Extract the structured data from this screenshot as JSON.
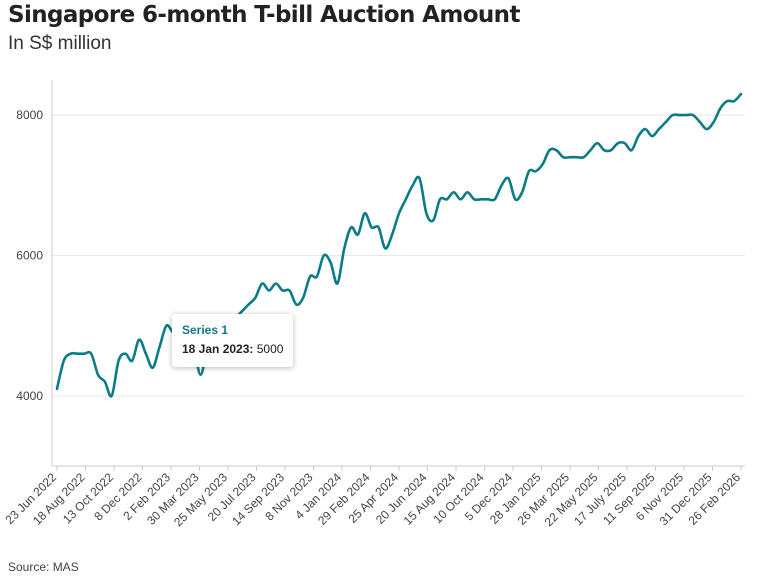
{
  "title": "Singapore 6-month T-bill Auction Amount",
  "subtitle": "In S$ million",
  "source": "Source: MAS",
  "tooltip": {
    "series": "Series 1",
    "date": "18 Jan 2023:",
    "value": "5000"
  },
  "colors": {
    "line": "#0b7c86",
    "grid": "#e8e8e8",
    "axis": "#cccccc"
  },
  "chart_data": {
    "type": "line",
    "title": "Singapore 6-month T-bill Auction Amount",
    "subtitle": "In S$ million",
    "xlabel": "",
    "ylabel": "",
    "ylim": [
      3000,
      8500
    ],
    "yticks": [
      4000,
      6000,
      8000
    ],
    "grid": "horizontal",
    "legend": "none",
    "x_tick_labels": [
      "23 Jun 2022",
      "18 Aug 2022",
      "13 Oct 2022",
      "8 Dec 2022",
      "2 Feb 2023",
      "30 Mar 2023",
      "25 May 2023",
      "20 Jul 2023",
      "14 Sep 2023",
      "8 Nov 2023",
      "4 Jan 2024",
      "29 Feb 2024",
      "25 Apr 2024",
      "20 Jun 2024",
      "15 Aug 2024",
      "10 Oct 2024",
      "5 Dec 2024",
      "28 Jan 2025",
      "26 Mar 2025",
      "22 May 2025",
      "17 July 2025",
      "11 Sep 2025",
      "6 Nov 2025",
      "31 Dec 2025",
      "26 Feb 2026"
    ],
    "series": [
      {
        "name": "Series 1",
        "values": [
          4100,
          4500,
          4600,
          4600,
          4600,
          4600,
          4300,
          4200,
          4000,
          4500,
          4600,
          4500,
          4800,
          4600,
          4400,
          4700,
          5000,
          4900,
          4900,
          5000,
          4700,
          4300,
          4700,
          4900,
          5000,
          5000,
          5100,
          5200,
          5300,
          5400,
          5600,
          5500,
          5600,
          5500,
          5500,
          5300,
          5400,
          5700,
          5700,
          6000,
          5900,
          5600,
          6100,
          6400,
          6300,
          6600,
          6400,
          6400,
          6100,
          6300,
          6600,
          6800,
          7000,
          7100,
          6600,
          6500,
          6800,
          6800,
          6900,
          6800,
          6900,
          6800,
          6800,
          6800,
          6800,
          7000,
          7100,
          6800,
          6900,
          7200,
          7200,
          7300,
          7500,
          7500,
          7400,
          7400,
          7400,
          7400,
          7500,
          7600,
          7500,
          7500,
          7600,
          7600,
          7500,
          7700,
          7800,
          7700,
          7800,
          7900,
          8000,
          8000,
          8000,
          8000,
          7900,
          7800,
          7900,
          8100,
          8200,
          8200,
          8300
        ]
      }
    ]
  }
}
